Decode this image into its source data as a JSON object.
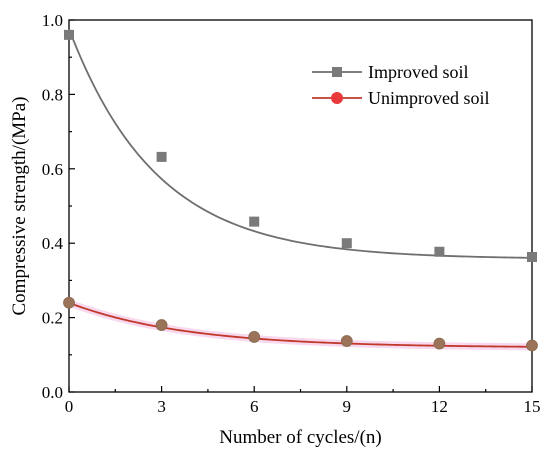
{
  "chart_data": {
    "type": "scatter",
    "xlabel": "Number of cycles/(n)",
    "ylabel": "Compressive strength/(MPa)",
    "xlim": [
      0,
      15
    ],
    "ylim": [
      0,
      1.0
    ],
    "x_ticks": [
      "0",
      "3",
      "6",
      "9",
      "12",
      "15"
    ],
    "y_ticks": [
      "0.0",
      "0.2",
      "0.4",
      "0.6",
      "0.8",
      "1.0"
    ],
    "grid": false,
    "legend_position": "top-right",
    "series": [
      {
        "name": "Improved soil",
        "marker": "square",
        "color": "#7a7a7a",
        "line_color": "#6f6f6f",
        "x": [
          0,
          3,
          6,
          9,
          12,
          15
        ],
        "y": [
          0.96,
          0.632,
          0.458,
          0.4,
          0.377,
          0.363
        ],
        "fit": {
          "a": 0.6187,
          "b": 0.352,
          "c": 0.3575
        }
      },
      {
        "name": "Unimproved soil",
        "marker": "circle",
        "color": "#e83a3a",
        "line_color": "#c0392b",
        "x": [
          0,
          3,
          6,
          9,
          12,
          15
        ],
        "y": [
          0.24,
          0.18,
          0.148,
          0.137,
          0.13,
          0.125
        ],
        "fit": {
          "a": 0.1207,
          "b": 0.265,
          "c": 0.1193
        }
      }
    ]
  }
}
